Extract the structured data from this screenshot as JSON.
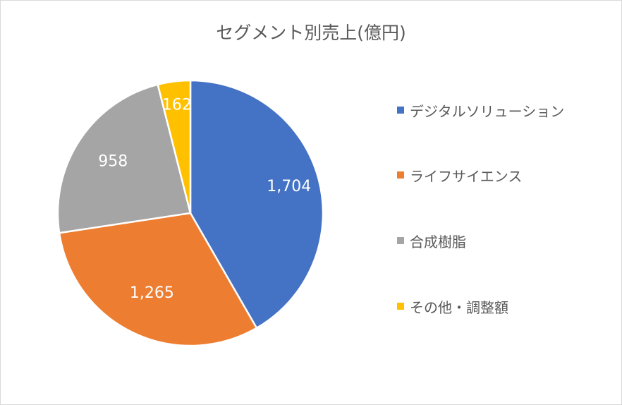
{
  "chart_data": {
    "type": "pie",
    "title": "セグメント別売上(億円)",
    "categories": [
      "デジタルソリューション",
      "ライフサイエンス",
      "合成樹脂",
      "その他・調整額"
    ],
    "values": [
      1704,
      1265,
      958,
      162
    ],
    "value_labels": [
      "1,704",
      "1,265",
      "958",
      "162"
    ],
    "colors": [
      "#4472C4",
      "#ED7D31",
      "#A5A5A5",
      "#FFC000"
    ],
    "legend_position": "right"
  }
}
